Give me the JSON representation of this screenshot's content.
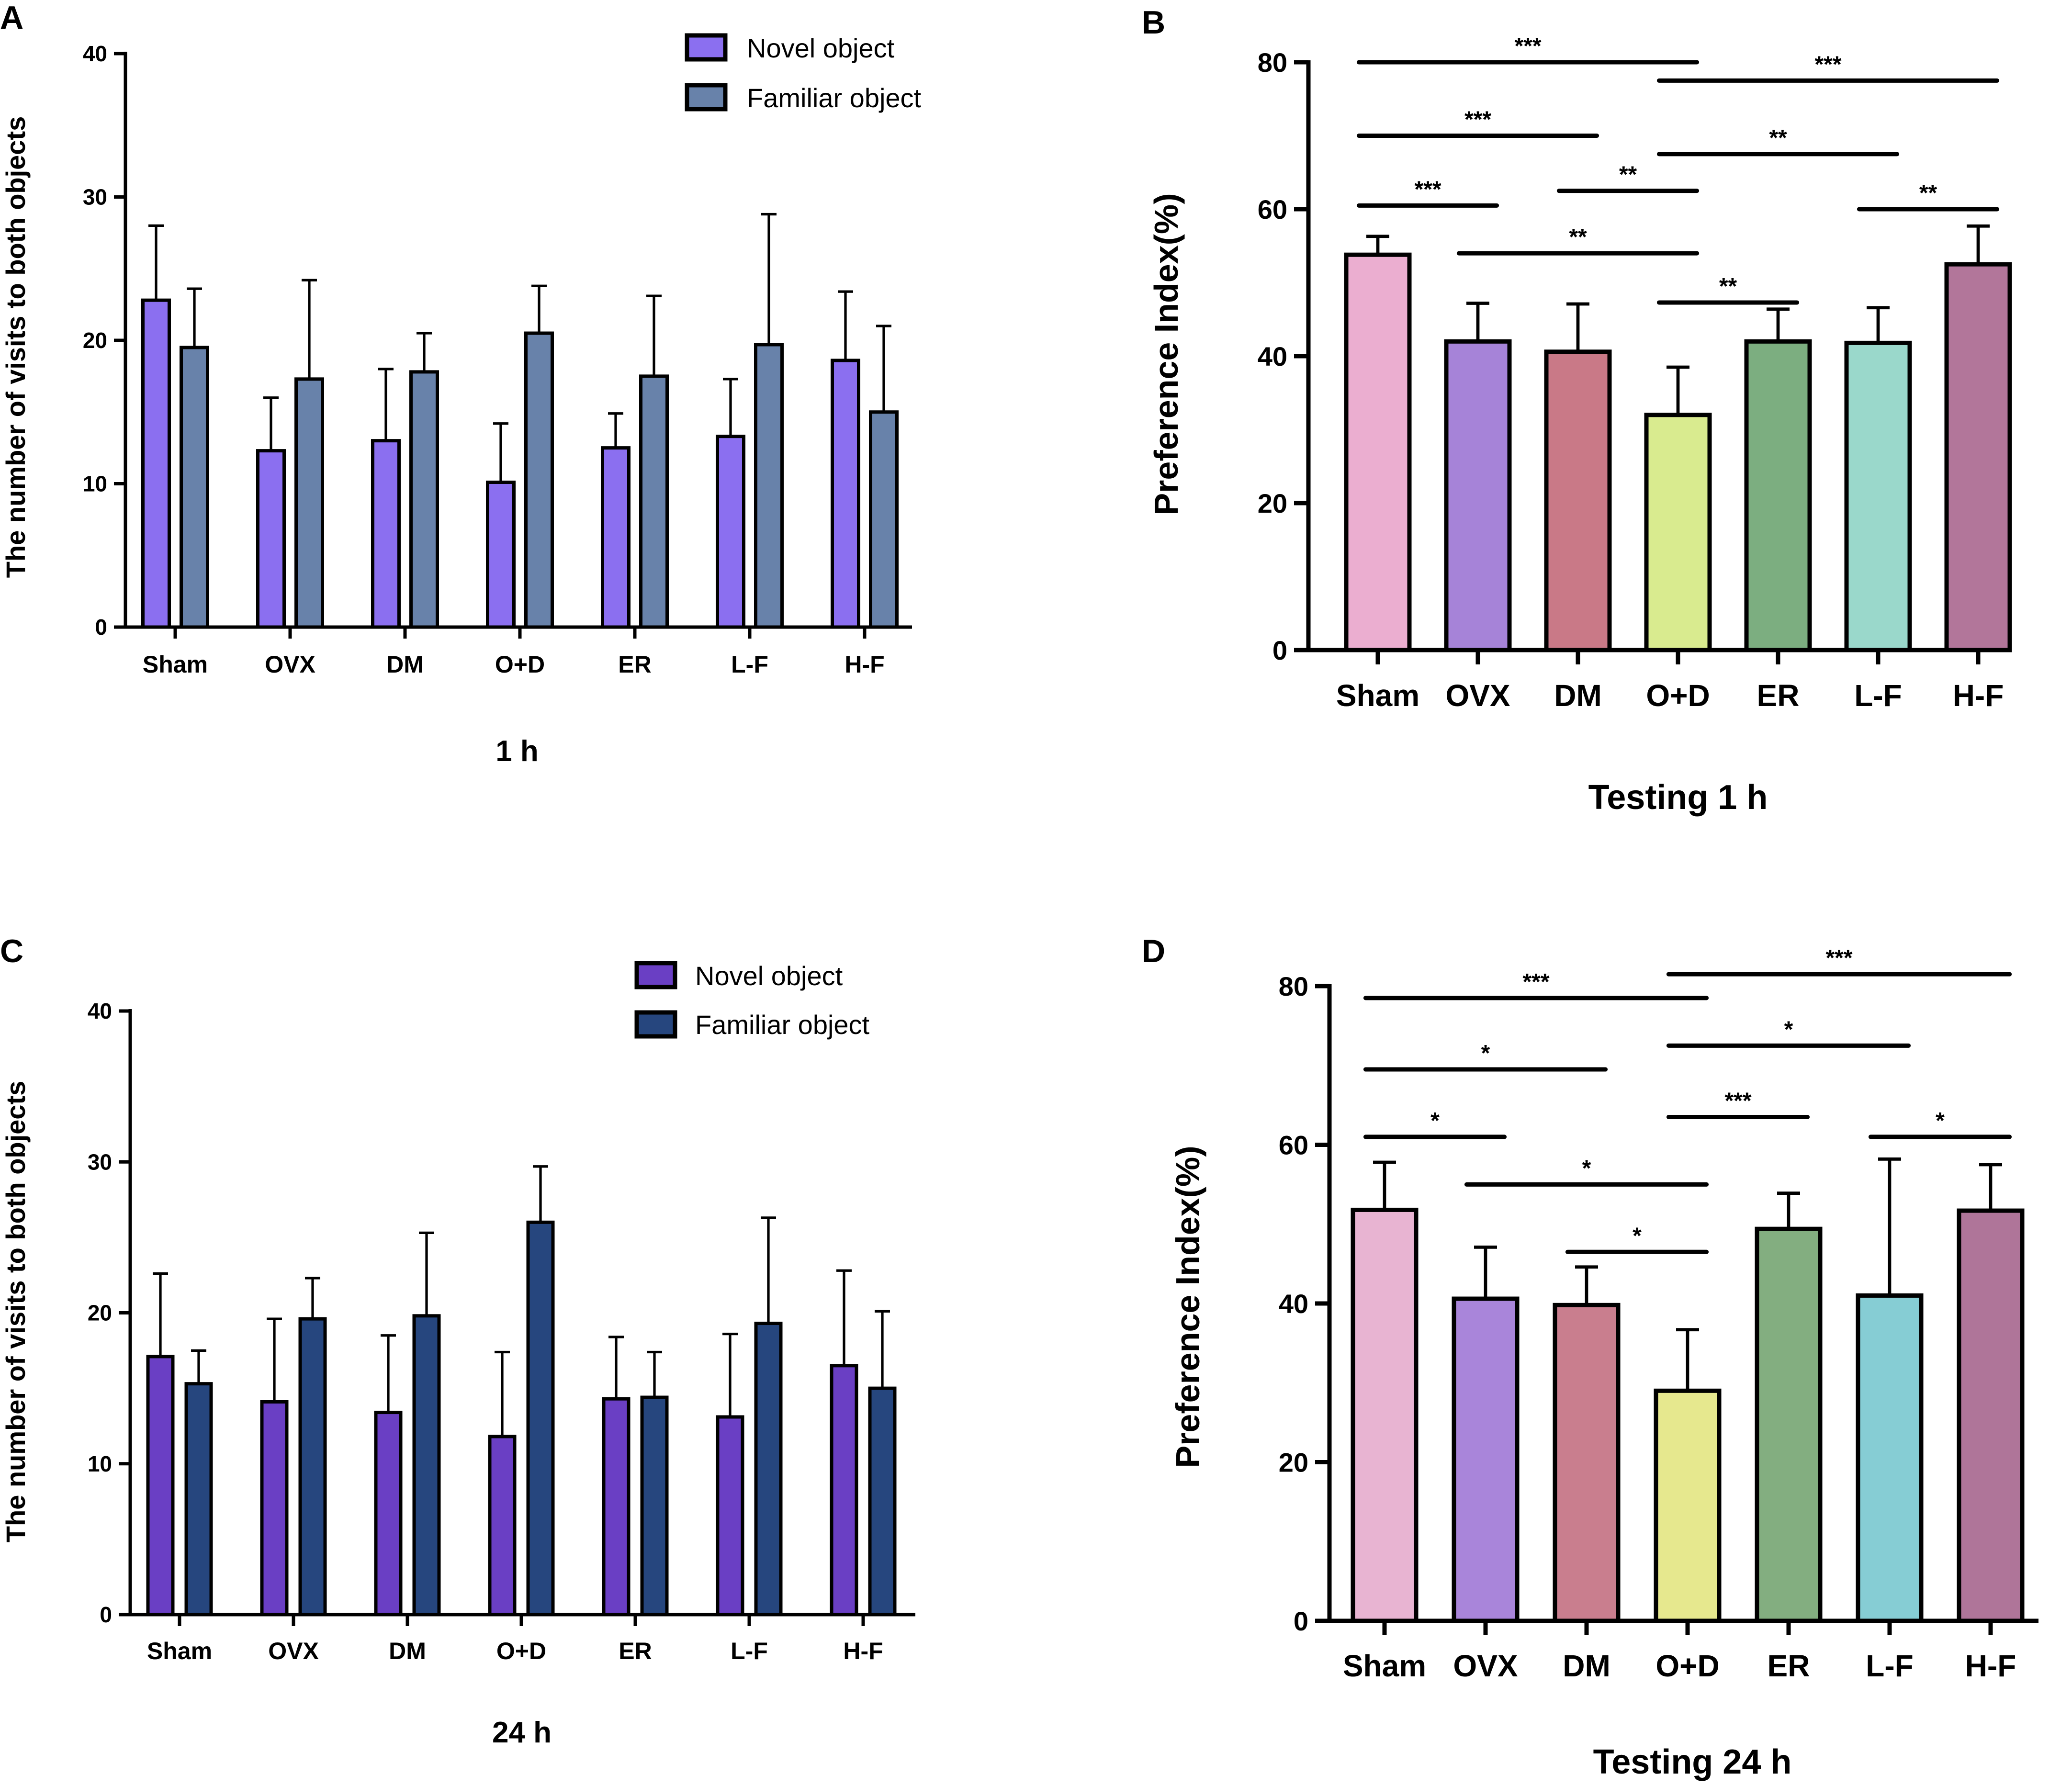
{
  "chart_data": [
    {
      "panel": "A",
      "type": "bar",
      "title": "",
      "xlabel": "1 h",
      "ylabel": "The number of visits to both objects",
      "ylim": [
        0,
        40
      ],
      "yticks": [
        0,
        10,
        20,
        30,
        40
      ],
      "categories": [
        "Sham",
        "OVX",
        "DM",
        "O+D",
        "ER",
        "L-F",
        "H-F"
      ],
      "legend": [
        "Novel object",
        "Familiar object"
      ],
      "legend_position": "top-right",
      "series": [
        {
          "name": "Novel object",
          "color": "#8B6FF0",
          "values": [
            22.8,
            12.3,
            13.0,
            10.1,
            12.5,
            13.3,
            18.6
          ],
          "errors": [
            5.2,
            3.7,
            5.0,
            4.1,
            2.4,
            4.0,
            4.8
          ]
        },
        {
          "name": "Familiar object",
          "color": "#6882AA",
          "values": [
            19.5,
            17.3,
            17.8,
            20.5,
            17.5,
            19.7,
            15.0
          ],
          "errors": [
            4.1,
            6.9,
            2.7,
            3.3,
            5.6,
            9.1,
            6.0
          ]
        }
      ]
    },
    {
      "panel": "B",
      "type": "bar",
      "title": "",
      "xlabel": "Testing 1 h",
      "ylabel": "Preference Index(%)",
      "ylim": [
        0,
        80
      ],
      "yticks": [
        0,
        20,
        40,
        60,
        80
      ],
      "categories": [
        "Sham",
        "OVX",
        "DM",
        "O+D",
        "ER",
        "L-F",
        "H-F"
      ],
      "colors": [
        "#EBAED0",
        "#A683D8",
        "#C97987",
        "#D9EB8F",
        "#7CAE80",
        "#9AD8CB",
        "#B2769A"
      ],
      "values": [
        53.8,
        42.0,
        40.6,
        32.0,
        42.0,
        41.8,
        52.5
      ],
      "errors": [
        2.5,
        5.2,
        6.5,
        6.5,
        4.4,
        4.8,
        5.2
      ],
      "significance": [
        {
          "from": 0,
          "to": 3,
          "level": 80,
          "label": "***"
        },
        {
          "from": 3,
          "to": 6,
          "level": 77.5,
          "label": "***"
        },
        {
          "from": 0,
          "to": 2,
          "level": 70,
          "label": "***"
        },
        {
          "from": 3,
          "to": 5,
          "level": 67.5,
          "label": "**"
        },
        {
          "from": 2,
          "to": 3,
          "level": 62.5,
          "label": "**"
        },
        {
          "from": 0,
          "to": 1,
          "level": 60.5,
          "label": "***"
        },
        {
          "from": 5,
          "to": 6,
          "level": 60,
          "label": "**"
        },
        {
          "from": 1,
          "to": 3,
          "level": 54,
          "label": "**"
        },
        {
          "from": 3,
          "to": 4,
          "level": 47.3,
          "label": "**"
        }
      ]
    },
    {
      "panel": "C",
      "type": "bar",
      "title": "",
      "xlabel": "24 h",
      "ylabel": "The number of visits to both objects",
      "ylim": [
        0,
        40
      ],
      "yticks": [
        0,
        10,
        20,
        30,
        40
      ],
      "categories": [
        "Sham",
        "OVX",
        "DM",
        "O+D",
        "ER",
        "L-F",
        "H-F"
      ],
      "legend": [
        "Novel object",
        "Familiar object"
      ],
      "legend_position": "top-right",
      "series": [
        {
          "name": "Novel object",
          "color": "#6A3FC4",
          "values": [
            17.1,
            14.1,
            13.4,
            11.8,
            14.3,
            13.1,
            16.5
          ],
          "errors": [
            5.5,
            5.5,
            5.1,
            5.6,
            4.1,
            5.5,
            6.3
          ]
        },
        {
          "name": "Familiar object",
          "color": "#26467E",
          "values": [
            15.3,
            19.6,
            19.8,
            26.0,
            14.4,
            19.3,
            15.0
          ],
          "errors": [
            2.2,
            2.7,
            5.5,
            3.7,
            3.0,
            7.0,
            5.1
          ]
        }
      ]
    },
    {
      "panel": "D",
      "type": "bar",
      "title": "",
      "xlabel": "Testing 24 h",
      "ylabel": "Preference Index(%)",
      "ylim": [
        0,
        80
      ],
      "yticks": [
        0,
        20,
        40,
        60,
        80
      ],
      "categories": [
        "Sham",
        "OVX",
        "DM",
        "O+D",
        "ER",
        "L-F",
        "H-F"
      ],
      "colors": [
        "#E8B4D2",
        "#A985DA",
        "#C97E8E",
        "#E6E88E",
        "#83AE80",
        "#86CDD4",
        "#AF7599"
      ],
      "values": [
        51.8,
        40.6,
        39.8,
        29.0,
        49.4,
        41.0,
        51.7
      ],
      "errors": [
        6.0,
        6.5,
        4.8,
        7.7,
        4.5,
        17.2,
        5.8
      ],
      "significance": [
        {
          "from": 3,
          "to": 6,
          "level": 81.5,
          "label": "***"
        },
        {
          "from": 0,
          "to": 3,
          "level": 78.5,
          "label": "***"
        },
        {
          "from": 3,
          "to": 5,
          "level": 72.5,
          "label": "*"
        },
        {
          "from": 0,
          "to": 2,
          "level": 69.5,
          "label": "*"
        },
        {
          "from": 3,
          "to": 4,
          "level": 63.5,
          "label": "***"
        },
        {
          "from": 0,
          "to": 1,
          "level": 61,
          "label": "*"
        },
        {
          "from": 5,
          "to": 6,
          "level": 61,
          "label": "*"
        },
        {
          "from": 1,
          "to": 3,
          "level": 55,
          "label": "*"
        },
        {
          "from": 2,
          "to": 3,
          "level": 46.5,
          "label": "*"
        }
      ]
    }
  ]
}
